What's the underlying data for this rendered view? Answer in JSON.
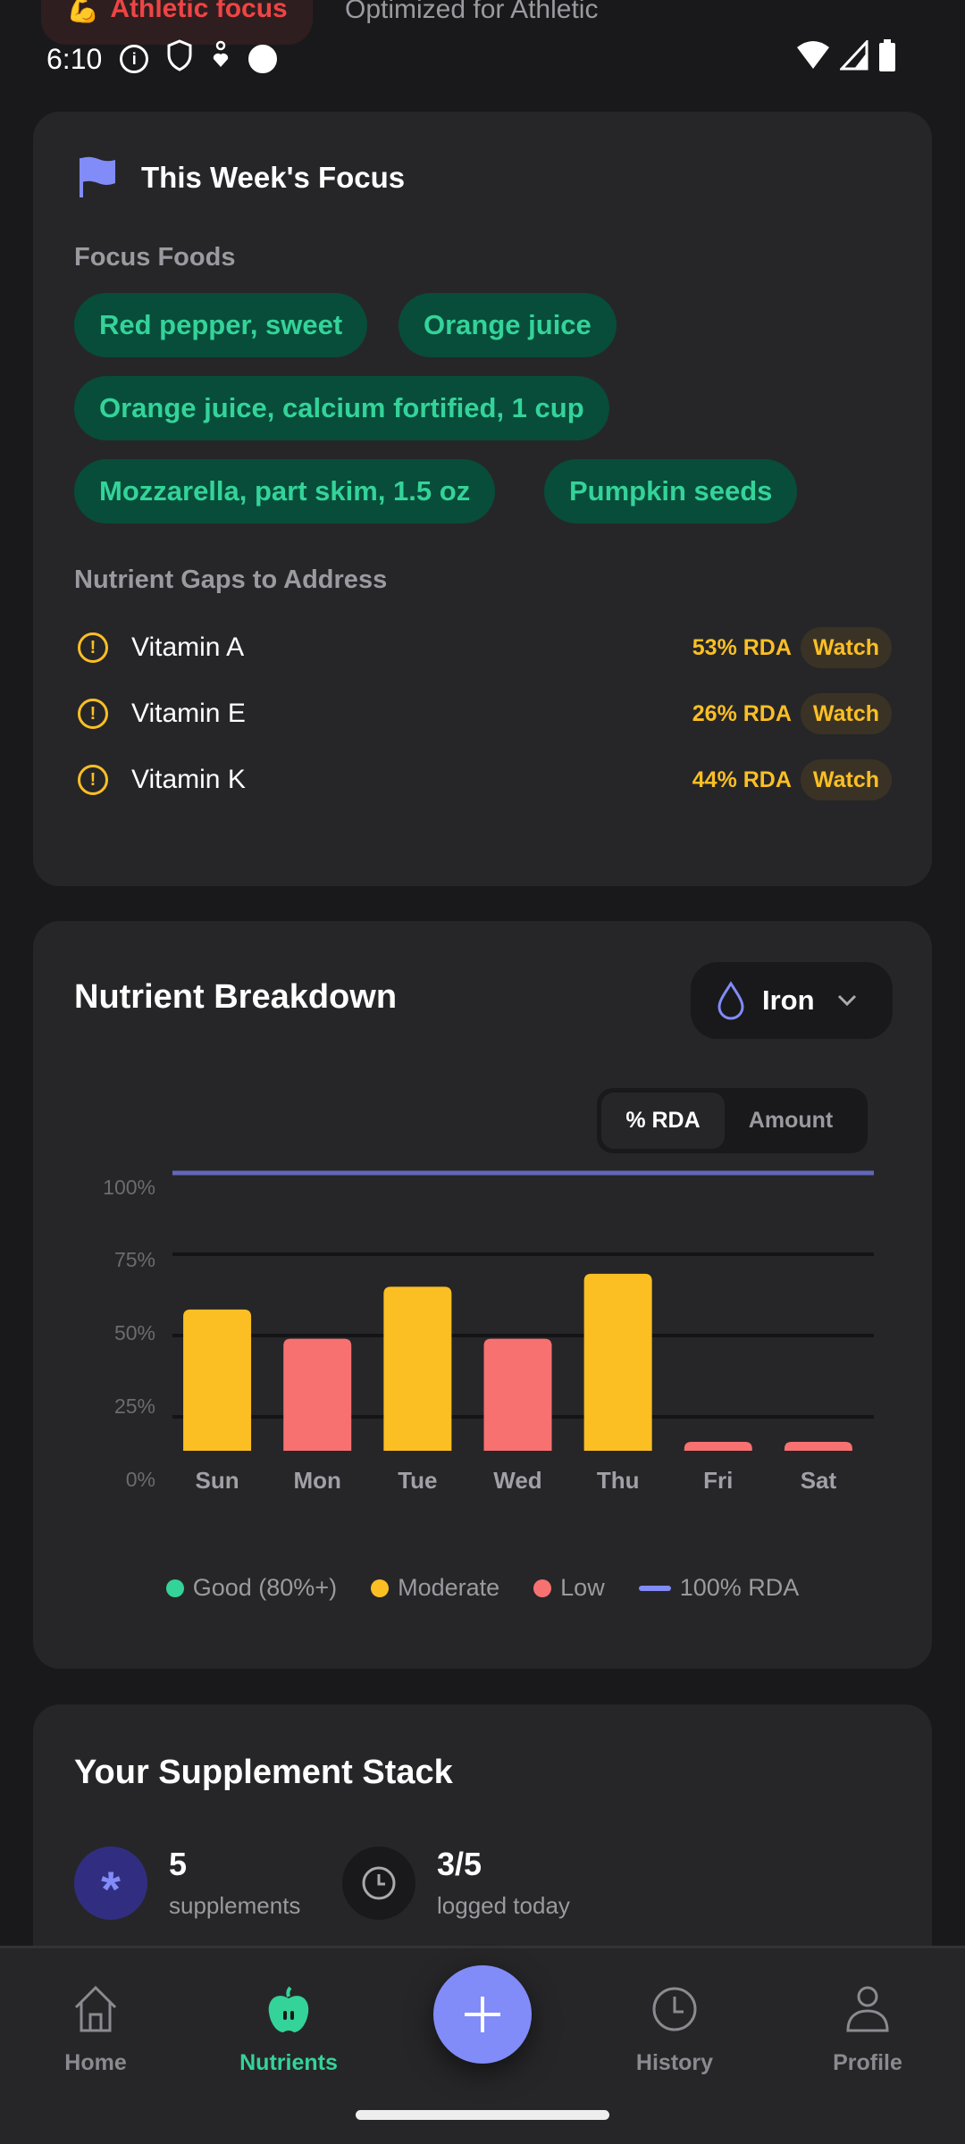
{
  "top_banner": {
    "chip_emoji": "💪",
    "chip_label": "Athletic focus",
    "subtitle": "Optimized for Athletic"
  },
  "status_bar": {
    "time": "6:10",
    "icons": [
      "info-icon",
      "shield-icon",
      "accessibility-icon",
      "face-icon"
    ],
    "right_icons": [
      "wifi-icon",
      "signal-icon",
      "battery-icon"
    ]
  },
  "focus_card": {
    "title": "This Week's Focus",
    "foods_label": "Focus Foods",
    "foods": [
      "Red pepper, sweet",
      "Orange juice",
      "Orange juice, calcium fortified, 1 cup",
      "Mozzarella, part skim, 1.5 oz",
      "Pumpkin seeds"
    ],
    "gaps_label": "Nutrient Gaps to Address",
    "gaps": [
      {
        "name": "Vitamin A",
        "pct": "53% RDA",
        "status": "Watch"
      },
      {
        "name": "Vitamin E",
        "pct": "26% RDA",
        "status": "Watch"
      },
      {
        "name": "Vitamin K",
        "pct": "44% RDA",
        "status": "Watch"
      }
    ]
  },
  "breakdown_card": {
    "title": "Nutrient Breakdown",
    "nutrient_select": "Iron",
    "toggle": {
      "options": [
        "% RDA",
        "Amount"
      ],
      "selected": "% RDA"
    }
  },
  "chart_data": {
    "type": "bar",
    "categories": [
      "Sun",
      "Mon",
      "Tue",
      "Wed",
      "Thu",
      "Fri",
      "Sat"
    ],
    "values": [
      58,
      49,
      65,
      49,
      69,
      0,
      0
    ],
    "value_unit": "% RDA",
    "ylim": [
      0,
      100
    ],
    "yticks": [
      "100%",
      "75%",
      "50%",
      "25%",
      "0%"
    ],
    "reference_line": {
      "value": 100,
      "label": "100% RDA",
      "color": "#6366b8"
    },
    "grid": true,
    "legend_position": "bottom",
    "legend": [
      {
        "label": "Good (80%+)",
        "color": "#34d399"
      },
      {
        "label": "Moderate",
        "color": "#fbbf24"
      },
      {
        "label": "Low",
        "color": "#f87171"
      },
      {
        "label": "100% RDA",
        "color": "#818cf8"
      }
    ],
    "thresholds": {
      "good": 80,
      "moderate": 50
    }
  },
  "supplement_card": {
    "title": "Your Supplement Stack",
    "stats": [
      {
        "value": "5",
        "label": "supplements"
      },
      {
        "value": "3/5",
        "label": "logged today"
      }
    ]
  },
  "bottom_nav": {
    "tabs": [
      "Home",
      "Nutrients",
      "History",
      "Profile"
    ],
    "active": "Nutrients"
  },
  "colors": {
    "accent": "#818cf8",
    "good": "#34d399",
    "moderate": "#fbbf24",
    "low": "#f87171",
    "bg": "#19191b",
    "card": "#262628"
  }
}
